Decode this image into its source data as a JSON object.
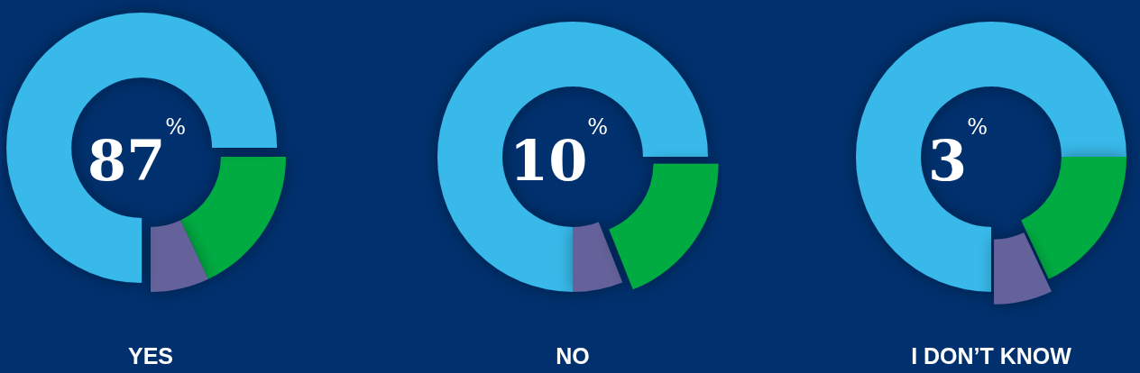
{
  "chart_data": [
    {
      "type": "donut",
      "title": "YES",
      "annotations": [
        "87$^{%}$"
      ],
      "categories": [
        null,
        null,
        null
      ],
      "values": [
        75,
        18,
        7
      ],
      "colors": [
        "#37b9ea",
        "#00ac42",
        "#65629b"
      ]
    },
    {
      "type": "donut",
      "title": "NO",
      "annotations": [
        "10$^{%}$"
      ],
      "categories": [
        null,
        null,
        null
      ],
      "values": [
        75,
        19,
        6
      ],
      "colors": [
        "#37b9ea",
        "#00ac42",
        "#65629b"
      ]
    },
    {
      "type": "donut",
      "title": "I DON’T KNOW",
      "annotations": [
        "3$^{%}$"
      ],
      "categories": [
        null,
        null,
        null
      ],
      "values": [
        75,
        18,
        7
      ],
      "colors": [
        "#37b9ea",
        "#00ac42",
        "#65629b"
      ]
    }
  ]
}
